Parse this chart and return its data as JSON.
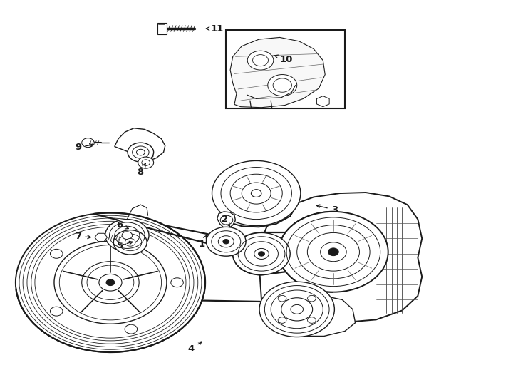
{
  "background_color": "#ffffff",
  "line_color": "#1a1a1a",
  "fig_width": 7.34,
  "fig_height": 5.4,
  "dpi": 100,
  "label_positions": {
    "1": [
      0.385,
      0.365,
      0.395,
      0.39
    ],
    "2": [
      0.43,
      0.43,
      0.44,
      0.41
    ],
    "3": [
      0.64,
      0.455,
      0.6,
      0.468
    ],
    "4": [
      0.365,
      0.092,
      0.39,
      0.115
    ],
    "5": [
      0.228,
      0.362,
      0.258,
      0.373
    ],
    "6": [
      0.228,
      0.415,
      0.25,
      0.403
    ],
    "7": [
      0.148,
      0.385,
      0.178,
      0.383
    ],
    "8": [
      0.268,
      0.553,
      0.278,
      0.578
    ],
    "9": [
      0.148,
      0.618,
      0.182,
      0.626
    ],
    "10": [
      0.548,
      0.848,
      0.52,
      0.86
    ],
    "11": [
      0.415,
      0.928,
      0.388,
      0.928
    ]
  }
}
